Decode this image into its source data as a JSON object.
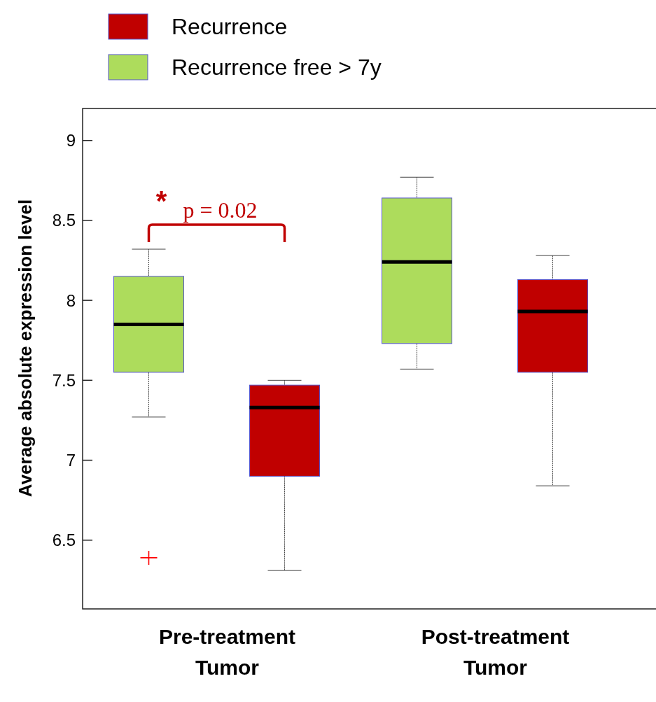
{
  "chart_data": {
    "type": "box",
    "categories": [
      "Pre-treatment Tumor",
      "Post-treatment Tumor"
    ],
    "ylabel": "Average absolute  expression level",
    "ylim": [
      6.07,
      9.2
    ],
    "yticks": [
      6.5,
      7,
      7.5,
      8,
      8.5,
      9
    ],
    "grid": false,
    "legend": "top left",
    "series": [
      {
        "name": "Recurrence free > 7y",
        "color": "#addc5c",
        "boxes": [
          {
            "low": 7.27,
            "q1": 7.55,
            "median": 7.85,
            "q3": 8.15,
            "high": 8.32,
            "outliers": [
              6.39
            ]
          },
          {
            "low": 7.57,
            "q1": 7.73,
            "median": 8.24,
            "q3": 8.64,
            "high": 8.77
          }
        ]
      },
      {
        "name": "Recurrence",
        "color": "#c00000",
        "boxes": [
          {
            "low": 6.31,
            "q1": 6.9,
            "median": 7.33,
            "q3": 7.47,
            "high": 7.5
          },
          {
            "low": 6.84,
            "q1": 7.55,
            "median": 7.93,
            "q3": 8.13,
            "high": 8.28
          }
        ]
      }
    ],
    "annotations": [
      "*",
      "p = 0.02"
    ]
  }
}
